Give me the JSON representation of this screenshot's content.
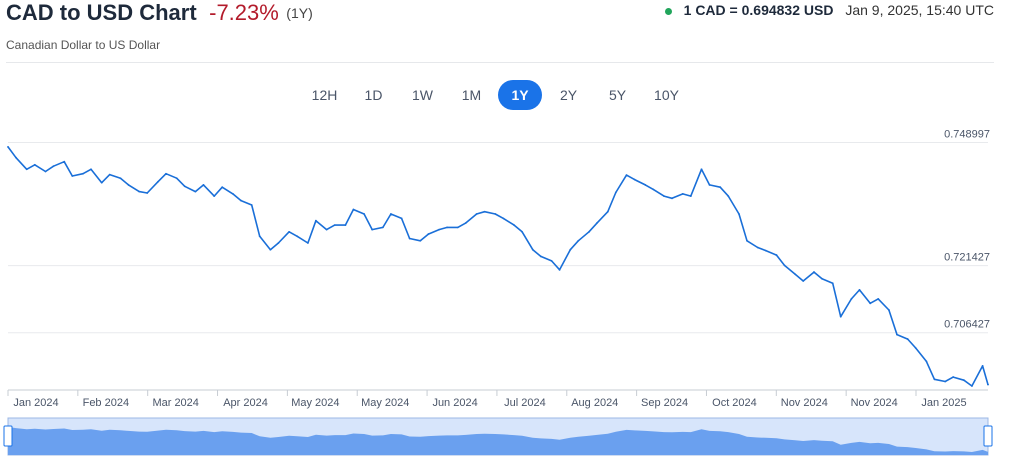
{
  "header": {
    "title": "CAD to USD Chart",
    "change": "-7.23%",
    "period": "(1Y)",
    "subtitle": "Canadian Dollar to US Dollar",
    "quote_rate": "1 CAD = 0.694832 USD",
    "quote_time": "Jan 9, 2025, 15:40 UTC"
  },
  "tabs": [
    {
      "label": "12H",
      "active": false
    },
    {
      "label": "1D",
      "active": false
    },
    {
      "label": "1W",
      "active": false
    },
    {
      "label": "1M",
      "active": false
    },
    {
      "label": "1Y",
      "active": true
    },
    {
      "label": "2Y",
      "active": false
    },
    {
      "label": "5Y",
      "active": false
    },
    {
      "label": "10Y",
      "active": false
    }
  ],
  "colors": {
    "line": "#1a6fd8",
    "navigator_fill": "#6aa0ef",
    "navigator_bg": "#d7e5fb",
    "negative": "#b31b2b",
    "live_dot": "#21a55b"
  },
  "chart_data": {
    "type": "line",
    "title": "CAD to USD Chart",
    "series": [
      {
        "values": [
          [
            "2024-01-09",
            0.748
          ],
          [
            "2024-01-12",
            0.7456
          ],
          [
            "2024-01-16",
            0.743
          ],
          [
            "2024-01-19",
            0.744
          ],
          [
            "2024-01-23",
            0.7425
          ],
          [
            "2024-01-26",
            0.7437
          ],
          [
            "2024-01-30",
            0.7447
          ],
          [
            "2024-02-02",
            0.7415
          ],
          [
            "2024-02-06",
            0.742
          ],
          [
            "2024-02-09",
            0.743
          ],
          [
            "2024-02-13",
            0.74
          ],
          [
            "2024-02-16",
            0.7418
          ],
          [
            "2024-02-20",
            0.741
          ],
          [
            "2024-02-23",
            0.7395
          ],
          [
            "2024-02-27",
            0.738
          ],
          [
            "2024-03-01",
            0.7377
          ],
          [
            "2024-03-05",
            0.7402
          ],
          [
            "2024-03-08",
            0.742
          ],
          [
            "2024-03-12",
            0.741
          ],
          [
            "2024-03-15",
            0.7392
          ],
          [
            "2024-03-19",
            0.738
          ],
          [
            "2024-03-22",
            0.7395
          ],
          [
            "2024-03-26",
            0.737
          ],
          [
            "2024-03-29",
            0.739
          ],
          [
            "2024-04-02",
            0.7375
          ],
          [
            "2024-04-05",
            0.736
          ],
          [
            "2024-04-09",
            0.735
          ],
          [
            "2024-04-12",
            0.728
          ],
          [
            "2024-04-16",
            0.725
          ],
          [
            "2024-04-19",
            0.7265
          ],
          [
            "2024-04-23",
            0.729
          ],
          [
            "2024-04-26",
            0.728
          ],
          [
            "2024-04-30",
            0.7265
          ],
          [
            "2024-05-03",
            0.7315
          ],
          [
            "2024-05-07",
            0.7295
          ],
          [
            "2024-05-10",
            0.7305
          ],
          [
            "2024-05-14",
            0.7305
          ],
          [
            "2024-05-17",
            0.734
          ],
          [
            "2024-05-21",
            0.733
          ],
          [
            "2024-05-24",
            0.7295
          ],
          [
            "2024-05-28",
            0.73
          ],
          [
            "2024-05-31",
            0.733
          ],
          [
            "2024-06-04",
            0.732
          ],
          [
            "2024-06-07",
            0.7275
          ],
          [
            "2024-06-11",
            0.727
          ],
          [
            "2024-06-14",
            0.7285
          ],
          [
            "2024-06-18",
            0.7295
          ],
          [
            "2024-06-21",
            0.73
          ],
          [
            "2024-06-25",
            0.73
          ],
          [
            "2024-06-28",
            0.731
          ],
          [
            "2024-07-02",
            0.733
          ],
          [
            "2024-07-05",
            0.7335
          ],
          [
            "2024-07-09",
            0.733
          ],
          [
            "2024-07-12",
            0.732
          ],
          [
            "2024-07-16",
            0.7305
          ],
          [
            "2024-07-19",
            0.729
          ],
          [
            "2024-07-23",
            0.725
          ],
          [
            "2024-07-26",
            0.7235
          ],
          [
            "2024-07-30",
            0.7225
          ],
          [
            "2024-08-02",
            0.7205
          ],
          [
            "2024-08-06",
            0.725
          ],
          [
            "2024-08-09",
            0.727
          ],
          [
            "2024-08-13",
            0.729
          ],
          [
            "2024-08-16",
            0.731
          ],
          [
            "2024-08-20",
            0.7335
          ],
          [
            "2024-08-23",
            0.7378
          ],
          [
            "2024-08-27",
            0.7417
          ],
          [
            "2024-08-30",
            0.7407
          ],
          [
            "2024-09-03",
            0.7395
          ],
          [
            "2024-09-06",
            0.7385
          ],
          [
            "2024-09-10",
            0.737
          ],
          [
            "2024-09-13",
            0.7365
          ],
          [
            "2024-09-17",
            0.7375
          ],
          [
            "2024-09-20",
            0.737
          ],
          [
            "2024-09-24",
            0.743
          ],
          [
            "2024-09-27",
            0.7395
          ],
          [
            "2024-10-01",
            0.739
          ],
          [
            "2024-10-04",
            0.737
          ],
          [
            "2024-10-08",
            0.733
          ],
          [
            "2024-10-11",
            0.727
          ],
          [
            "2024-10-15",
            0.7255
          ],
          [
            "2024-10-18",
            0.7248
          ],
          [
            "2024-10-22",
            0.7238
          ],
          [
            "2024-10-25",
            0.7215
          ],
          [
            "2024-10-29",
            0.7195
          ],
          [
            "2024-11-01",
            0.718
          ],
          [
            "2024-11-05",
            0.72
          ],
          [
            "2024-11-08",
            0.7185
          ],
          [
            "2024-11-12",
            0.7175
          ],
          [
            "2024-11-15",
            0.71
          ],
          [
            "2024-11-19",
            0.714
          ],
          [
            "2024-11-22",
            0.716
          ],
          [
            "2024-11-26",
            0.713
          ],
          [
            "2024-11-29",
            0.714
          ],
          [
            "2024-12-03",
            0.7115
          ],
          [
            "2024-12-06",
            0.706
          ],
          [
            "2024-12-10",
            0.705
          ],
          [
            "2024-12-13",
            0.703
          ],
          [
            "2024-12-17",
            0.7
          ],
          [
            "2024-12-20",
            0.696
          ],
          [
            "2024-12-24",
            0.6955
          ],
          [
            "2024-12-27",
            0.6965
          ],
          [
            "2024-12-31",
            0.6958
          ],
          [
            "2025-01-03",
            0.6945
          ],
          [
            "2025-01-07",
            0.699
          ],
          [
            "2025-01-09",
            0.6948
          ]
        ]
      }
    ],
    "x_ticks": [
      "Jan 2024",
      "Feb 2024",
      "Mar 2024",
      "Apr 2024",
      "May 2024",
      "May 2024",
      "Jun 2024",
      "Jul 2024",
      "Aug 2024",
      "Sep 2024",
      "Oct 2024",
      "Nov 2024",
      "Nov 2024",
      "Jan 2025"
    ],
    "y_ticks": [
      "0.748997",
      "0.721427",
      "0.706427"
    ],
    "ylim": [
      0.6945,
      0.75
    ],
    "xlim": [
      "2024-01-09",
      "2025-01-09"
    ],
    "grid": "horizontal",
    "legend": "none",
    "navigator": true
  }
}
